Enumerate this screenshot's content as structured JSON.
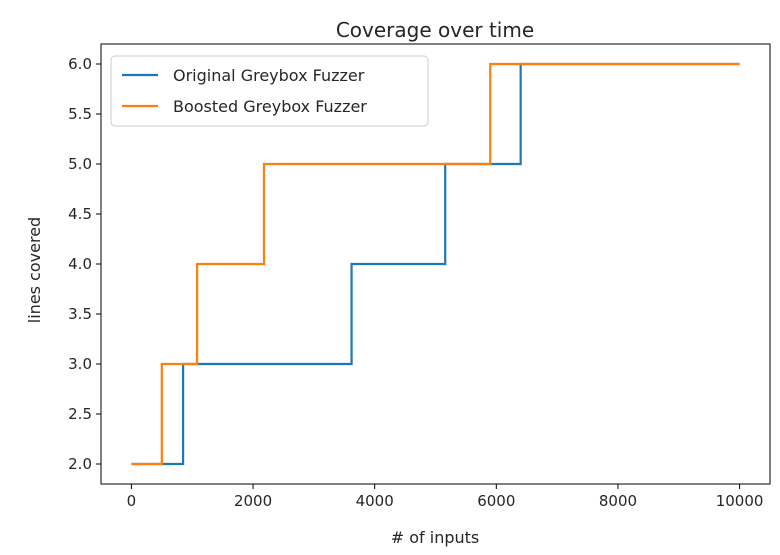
{
  "chart_data": {
    "type": "line",
    "title": "Coverage over time",
    "xlabel": "# of inputs",
    "ylabel": "lines covered",
    "xlim": [
      -500,
      10500
    ],
    "ylim": [
      1.8,
      6.2
    ],
    "xticks": [
      0,
      2000,
      4000,
      6000,
      8000,
      10000
    ],
    "yticks": [
      2.0,
      2.5,
      3.0,
      3.5,
      4.0,
      4.5,
      5.0,
      5.5,
      6.0
    ],
    "xtick_labels": [
      "0",
      "2000",
      "4000",
      "6000",
      "8000",
      "10000"
    ],
    "ytick_labels": [
      "2.0",
      "2.5",
      "3.0",
      "3.5",
      "4.0",
      "4.5",
      "5.0",
      "5.5",
      "6.0"
    ],
    "grid": false,
    "legend_position": "top-left",
    "step": true,
    "series": [
      {
        "name": "Original Greybox Fuzzer",
        "color": "#1f77b4",
        "x": [
          0,
          850,
          850,
          3620,
          3620,
          5160,
          5160,
          6400,
          6400,
          10000
        ],
        "y": [
          2,
          2,
          3,
          3,
          4,
          4,
          5,
          5,
          6,
          6
        ]
      },
      {
        "name": "Boosted Greybox Fuzzer",
        "color": "#ff7f0e",
        "x": [
          0,
          500,
          500,
          1080,
          1080,
          2180,
          2180,
          5900,
          5900,
          10000
        ],
        "y": [
          2,
          2,
          3,
          3,
          4,
          4,
          5,
          5,
          6,
          6
        ]
      }
    ]
  }
}
